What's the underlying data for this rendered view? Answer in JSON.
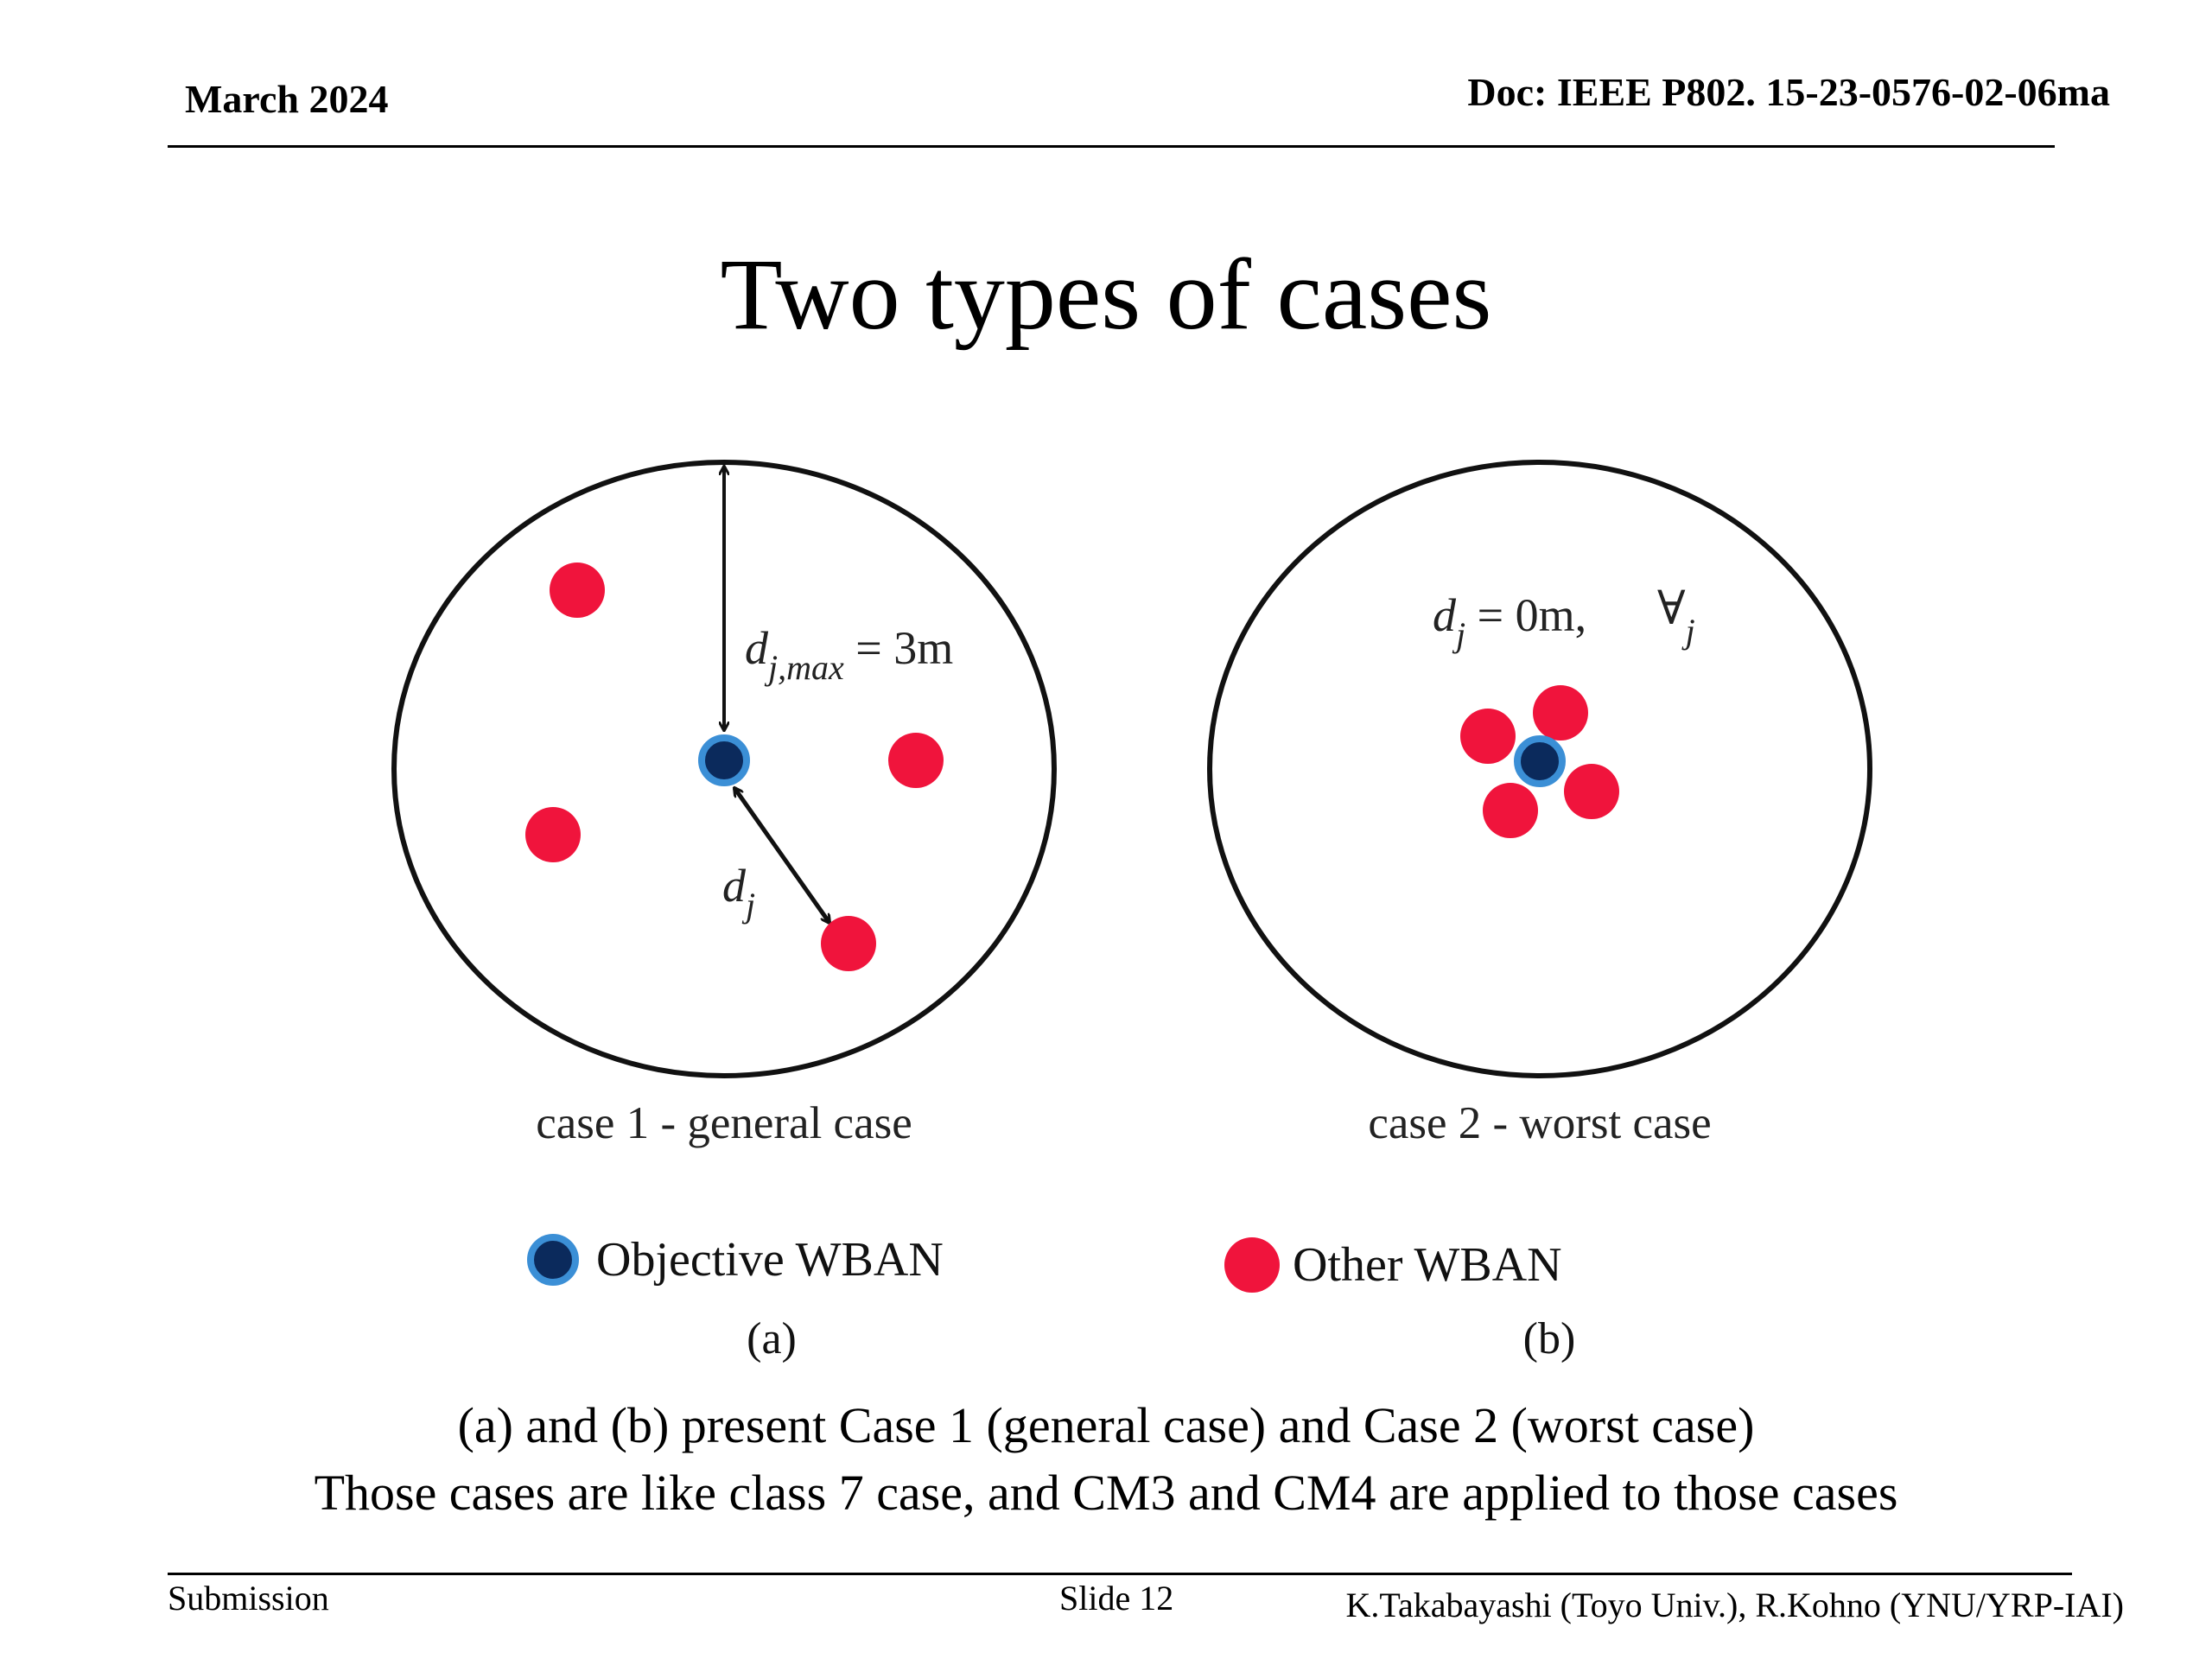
{
  "header": {
    "date": "March 2024",
    "doc": "Doc: IEEE P802. 15-23-0576-02-06ma"
  },
  "slide": {
    "title": "Two types of cases"
  },
  "diagram": {
    "case1": {
      "caption": "case 1 - general case",
      "label_dmax_var": "d",
      "label_dmax_sub": "j,max",
      "label_dmax_eq": " = 3m",
      "label_dj_var": "d",
      "label_dj_sub": "j"
    },
    "case2": {
      "caption": "case 2 - worst case",
      "label_var": "d",
      "label_sub": "j",
      "label_eq": " = 0m,",
      "forall": "∀",
      "forall_sub": "j"
    },
    "colors": {
      "objective": "#0b2a5c",
      "objective_ring": "#3b8fd6",
      "other": "#f0143c"
    }
  },
  "legend": {
    "objective_label": "Objective WBAN",
    "other_label": "Other WBAN",
    "sub_a": "(a)",
    "sub_b": "(b)"
  },
  "description": {
    "line1": "(a)  and (b) present Case 1 (general case) and Case 2 (worst case)",
    "line2": "Those cases are like class 7 case, and CM3 and CM4 are applied to those cases"
  },
  "footer": {
    "left": "Submission",
    "center": "Slide 12",
    "right": "K.Takabayashi (Toyo Univ.), R.Kohno (YNU/YRP-IAI)"
  }
}
